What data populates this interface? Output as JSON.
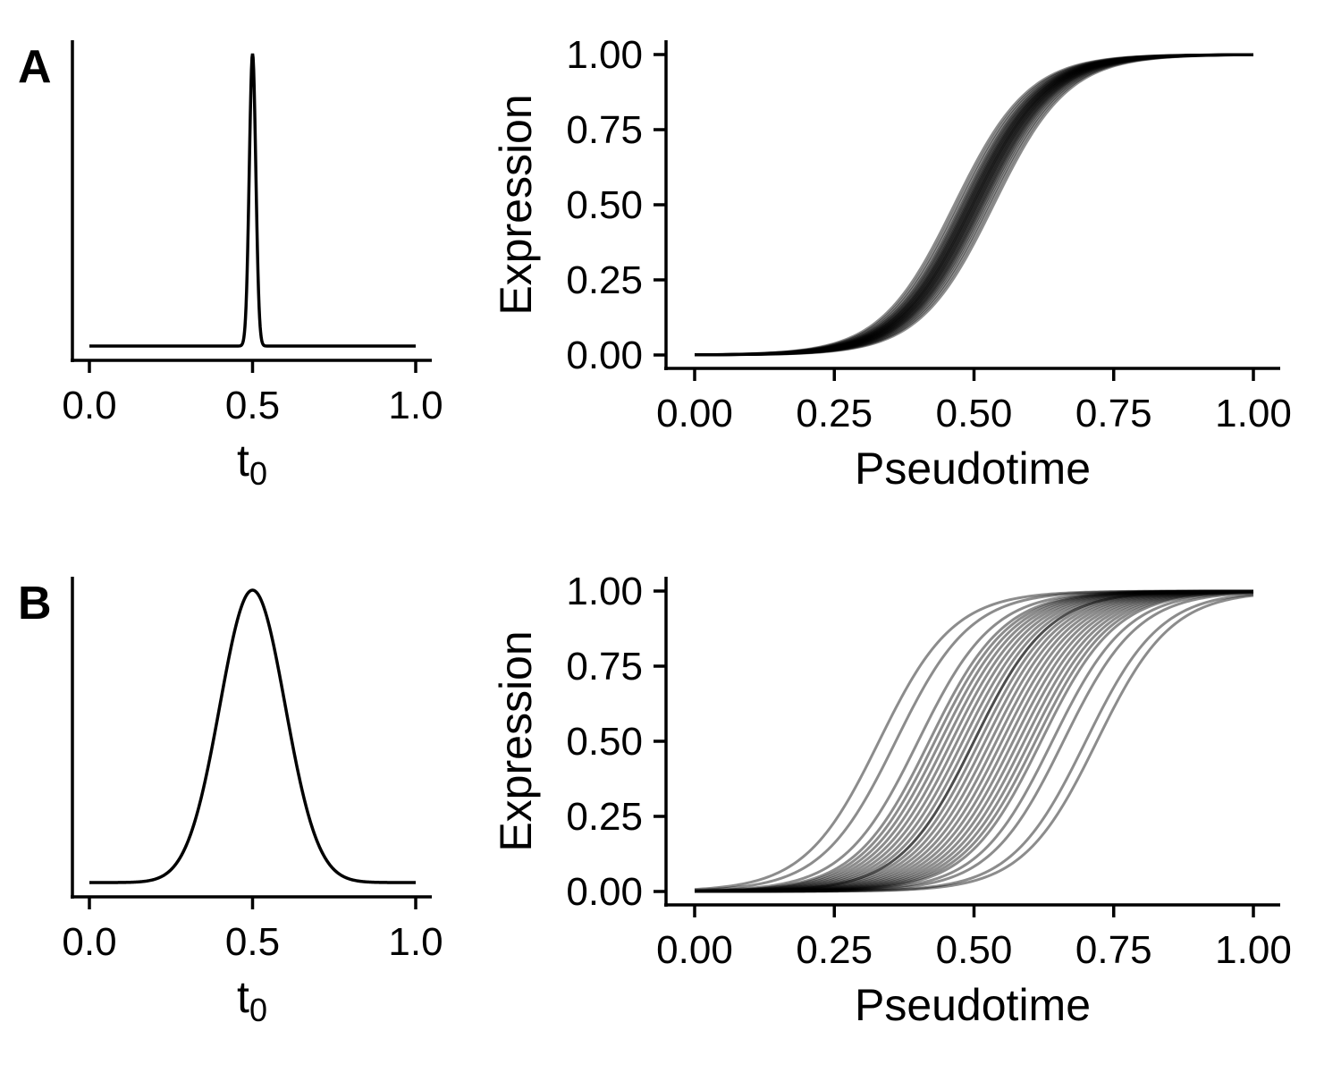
{
  "panels": [
    {
      "letter": "A",
      "density": {
        "xlabel_base": "t",
        "xlabel_sub": "0",
        "xticks": [
          "0.0",
          "0.5",
          "1.0"
        ],
        "xlim": [
          0,
          1
        ],
        "distribution": {
          "mean": 0.5,
          "sd": 0.01
        }
      },
      "curves": {
        "xlabel": "Pseudotime",
        "ylabel": "Expression",
        "xticks": [
          "0.00",
          "0.25",
          "0.50",
          "0.75",
          "1.00"
        ],
        "yticks": [
          "0.00",
          "0.25",
          "0.50",
          "0.75",
          "1.00"
        ],
        "xlim": [
          0,
          1
        ],
        "ylim": [
          0,
          1
        ],
        "steepness": 15,
        "t0": [
          0.465,
          0.47,
          0.474,
          0.478,
          0.48,
          0.483,
          0.485,
          0.487,
          0.489,
          0.49,
          0.492,
          0.494,
          0.495,
          0.497,
          0.498,
          0.5,
          0.501,
          0.503,
          0.505,
          0.506,
          0.508,
          0.51,
          0.512,
          0.514,
          0.516,
          0.519,
          0.522,
          0.526,
          0.53,
          0.535
        ]
      }
    },
    {
      "letter": "B",
      "density": {
        "xlabel_base": "t",
        "xlabel_sub": "0",
        "xticks": [
          "0.0",
          "0.5",
          "1.0"
        ],
        "xlim": [
          0,
          1
        ],
        "distribution": {
          "mean": 0.5,
          "sd": 0.1
        }
      },
      "curves": {
        "xlabel": "Pseudotime",
        "ylabel": "Expression",
        "xticks": [
          "0.00",
          "0.25",
          "0.50",
          "0.75",
          "1.00"
        ],
        "yticks": [
          "0.00",
          "0.25",
          "0.50",
          "0.75",
          "1.00"
        ],
        "xlim": [
          0,
          1
        ],
        "ylim": [
          0,
          1
        ],
        "steepness": 15,
        "t0": [
          0.33,
          0.36,
          0.4,
          0.42,
          0.43,
          0.44,
          0.45,
          0.46,
          0.47,
          0.48,
          0.49,
          0.5,
          0.5,
          0.51,
          0.52,
          0.53,
          0.54,
          0.55,
          0.56,
          0.57,
          0.58,
          0.59,
          0.6,
          0.61,
          0.62,
          0.64,
          0.66,
          0.7,
          0.72
        ]
      }
    }
  ],
  "chart_data": [
    {
      "type": "line",
      "title": "",
      "xlabel": "t0",
      "ylabel": "",
      "xlim": [
        0,
        1
      ],
      "description_values": {
        "peak_x": 0.5,
        "sd": 0.01
      },
      "series": [
        {
          "values": "narrow gaussian density centered at 0.5"
        }
      ]
    },
    {
      "type": "line",
      "title": "",
      "xlabel": "Pseudotime",
      "ylabel": "Expression",
      "xlim": [
        0,
        1
      ],
      "ylim": [
        0,
        1
      ],
      "function": "1/(1+exp(-15*(x - t0)))",
      "t0_values": [
        0.465,
        0.47,
        0.474,
        0.478,
        0.48,
        0.483,
        0.485,
        0.487,
        0.489,
        0.49,
        0.492,
        0.494,
        0.495,
        0.497,
        0.498,
        0.5,
        0.501,
        0.503,
        0.505,
        0.506,
        0.508,
        0.51,
        0.512,
        0.514,
        0.516,
        0.519,
        0.522,
        0.526,
        0.53,
        0.535
      ]
    },
    {
      "type": "line",
      "title": "",
      "xlabel": "t0",
      "ylabel": "",
      "xlim": [
        0,
        1
      ],
      "description_values": {
        "peak_x": 0.5,
        "sd": 0.1
      },
      "series": [
        {
          "values": "wide gaussian density centered at 0.5"
        }
      ]
    },
    {
      "type": "line",
      "title": "",
      "xlabel": "Pseudotime",
      "ylabel": "Expression",
      "xlim": [
        0,
        1
      ],
      "ylim": [
        0,
        1
      ],
      "function": "1/(1+exp(-15*(x - t0)))",
      "t0_values": [
        0.33,
        0.36,
        0.4,
        0.42,
        0.43,
        0.44,
        0.45,
        0.46,
        0.47,
        0.48,
        0.49,
        0.5,
        0.5,
        0.51,
        0.52,
        0.53,
        0.54,
        0.55,
        0.56,
        0.57,
        0.58,
        0.59,
        0.6,
        0.61,
        0.62,
        0.64,
        0.66,
        0.7,
        0.72
      ]
    }
  ]
}
